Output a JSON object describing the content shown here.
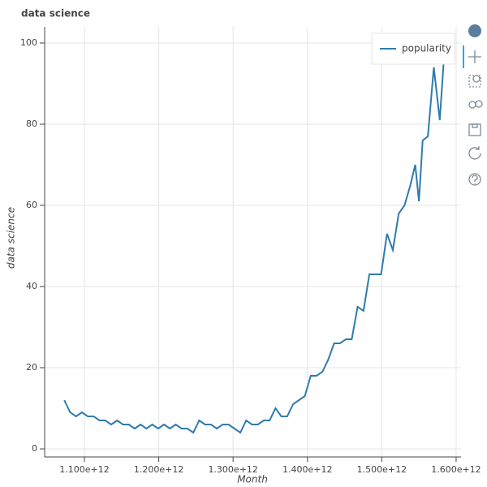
{
  "chart_data": {
    "type": "line",
    "title": "data science",
    "x_label": "Month",
    "y_label": "data science",
    "x": [
      1072900000000.0,
      1080800000000.0,
      1088700000000.0,
      1096600000000.0,
      1104500000000.0,
      1112400000000.0,
      1120300000000.0,
      1128100000000.0,
      1136000000000.0,
      1143900000000.0,
      1151800000000.0,
      1159700000000.0,
      1167600000000.0,
      1175500000000.0,
      1183400000000.0,
      1191300000000.0,
      1199200000000.0,
      1207100000000.0,
      1215000000000.0,
      1222800000000.0,
      1230700000000.0,
      1238600000000.0,
      1246500000000.0,
      1254400000000.0,
      1262300000000.0,
      1270200000000.0,
      1278100000000.0,
      1286000000000.0,
      1293900000000.0,
      1301800000000.0,
      1309700000000.0,
      1317600000000.0,
      1325400000000.0,
      1333300000000.0,
      1341200000000.0,
      1349100000000.0,
      1357000000000.0,
      1364900000000.0,
      1372800000000.0,
      1380700000000.0,
      1388600000000.0,
      1396500000000.0,
      1404400000000.0,
      1412300000000.0,
      1420200000000.0,
      1428000000000.0,
      1435900000000.0,
      1443800000000.0,
      1451700000000.0,
      1459600000000.0,
      1467500000000.0,
      1475400000000.0,
      1483300000000.0,
      1491200000000.0,
      1499100000000.0,
      1507000000000.0,
      1514900000000.0,
      1522800000000.0,
      1530600000000.0,
      1538500000000.0,
      1545000000000.0,
      1550000000000.0,
      1555000000000.0,
      1562000000000.0,
      1570000000000.0,
      1578000000000.0,
      1585000000000.0
    ],
    "series": [
      {
        "name": "popularity",
        "color": "#2f7bab",
        "values": [
          12,
          9,
          8,
          9,
          8,
          8,
          7,
          7,
          6,
          7,
          6,
          6,
          5,
          6,
          5,
          6,
          5,
          6,
          5,
          6,
          5,
          5,
          4,
          7,
          6,
          6,
          5,
          6,
          6,
          5,
          4,
          7,
          6,
          6,
          7,
          7,
          10,
          8,
          8,
          11,
          12,
          13,
          18,
          18,
          19,
          22,
          26,
          26,
          27,
          27,
          35,
          34,
          43,
          43,
          43,
          53,
          49,
          58,
          60,
          65,
          70,
          61,
          76,
          77,
          94,
          81,
          100
        ]
      }
    ],
    "xlim": [
      1046500000000.0,
      1606600000000.0
    ],
    "ylim": [
      -2,
      104
    ],
    "xticks": [
      {
        "value": 1100000000000.0,
        "label": "1.100e+12"
      },
      {
        "value": 1200000000000.0,
        "label": "1.200e+12"
      },
      {
        "value": 1300000000000.0,
        "label": "1.300e+12"
      },
      {
        "value": 1400000000000.0,
        "label": "1.400e+12"
      },
      {
        "value": 1500000000000.0,
        "label": "1.500e+12"
      },
      {
        "value": 1600000000000.0,
        "label": "1.600e+12"
      }
    ],
    "yticks": [
      0,
      20,
      40,
      60,
      80,
      100
    ],
    "grid": true,
    "legend": "top-right"
  }
}
